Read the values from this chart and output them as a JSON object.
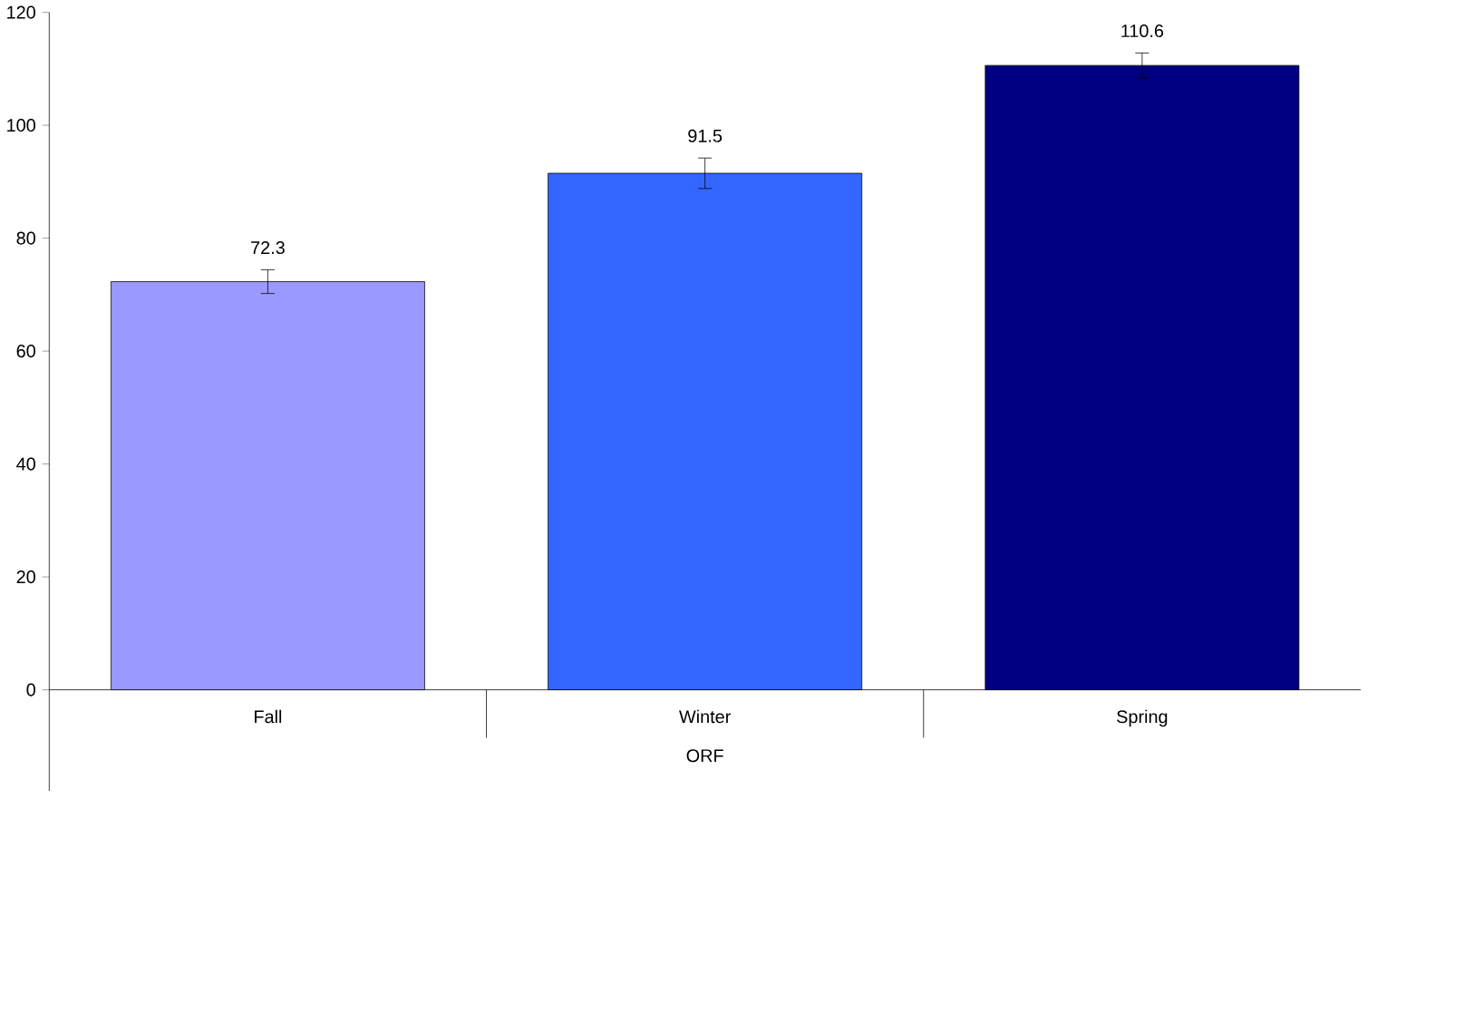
{
  "chart_data": {
    "type": "bar",
    "xlabel": "ORF",
    "categories": [
      "Fall",
      "Winter",
      "Spring"
    ],
    "values": [
      72.3,
      91.5,
      110.6
    ],
    "errors": [
      2.1,
      2.7,
      2.2
    ],
    "colors": [
      "#9999ff",
      "#3366ff",
      "#000080"
    ],
    "data_labels": true,
    "ylim": [
      0,
      120
    ],
    "yticks": [
      0,
      20,
      40,
      60,
      80,
      100,
      120
    ]
  }
}
